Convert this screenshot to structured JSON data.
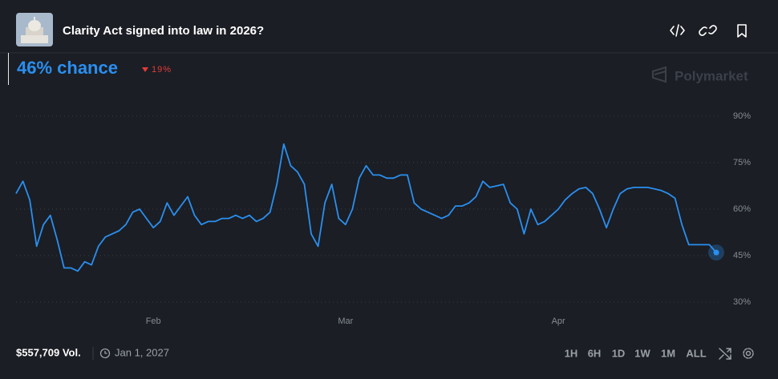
{
  "header": {
    "title": "Clarity Act signed into law in 2026?"
  },
  "headline": {
    "chance": "46% chance",
    "change": "19%"
  },
  "brand": "Polymarket",
  "footer": {
    "volume": "$557,709 Vol.",
    "end_date": "Jan 1, 2027",
    "ranges": [
      "1H",
      "6H",
      "1D",
      "1W",
      "1M",
      "ALL"
    ],
    "active_range": 5
  },
  "chart_data": {
    "type": "line",
    "color": "#2a8ff0",
    "grid": true,
    "categories": [
      null,
      null,
      null,
      null,
      null,
      null,
      null,
      null,
      null,
      null,
      null,
      null,
      null,
      null,
      null,
      null,
      null,
      null,
      null,
      null,
      "Feb",
      null,
      null,
      null,
      null,
      null,
      null,
      null,
      null,
      null,
      null,
      null,
      null,
      null,
      null,
      null,
      null,
      null,
      null,
      null,
      null,
      null,
      null,
      null,
      null,
      null,
      null,
      null,
      "Mar",
      null,
      null,
      null,
      null,
      null,
      null,
      null,
      null,
      null,
      null,
      null,
      null,
      null,
      null,
      null,
      null,
      null,
      null,
      null,
      null,
      null,
      null,
      null,
      null,
      null,
      null,
      null,
      null,
      null,
      null,
      "Apr",
      null,
      null,
      null,
      null,
      null,
      null,
      null,
      null,
      null,
      null,
      null,
      null,
      null,
      null,
      null,
      null,
      null,
      null,
      null,
      null,
      null,
      null,
      null
    ],
    "values": [
      65,
      69,
      63,
      48,
      55,
      58,
      50,
      41,
      41,
      40,
      43,
      42,
      48,
      51,
      52,
      53,
      55,
      59,
      60,
      57,
      54,
      56,
      62,
      58,
      61,
      64,
      58,
      55,
      56,
      56,
      57,
      57,
      58,
      57,
      58,
      56,
      57,
      59,
      68,
      81,
      74,
      72,
      68,
      52,
      48,
      62,
      68,
      57,
      55,
      60,
      70,
      74,
      71,
      71,
      70,
      70,
      71,
      71,
      62,
      60,
      59,
      58,
      57,
      58,
      61,
      61,
      62,
      64,
      69,
      67,
      67.5,
      68,
      62,
      60,
      52,
      60,
      55,
      56,
      58,
      60,
      63,
      65,
      66.5,
      67,
      65,
      60,
      54,
      60,
      65,
      66.5,
      67,
      67,
      67,
      66.5,
      66,
      65,
      63.5,
      55,
      48.5,
      48.5,
      48.5,
      48.5,
      46
    ],
    "ylim": [
      25,
      100
    ],
    "yticks": [
      {
        "value": 30,
        "label": "30%"
      },
      {
        "value": 45,
        "label": "45%"
      },
      {
        "value": 60,
        "label": "60%"
      },
      {
        "value": 75,
        "label": "75%"
      },
      {
        "value": 90,
        "label": "90%"
      }
    ]
  }
}
